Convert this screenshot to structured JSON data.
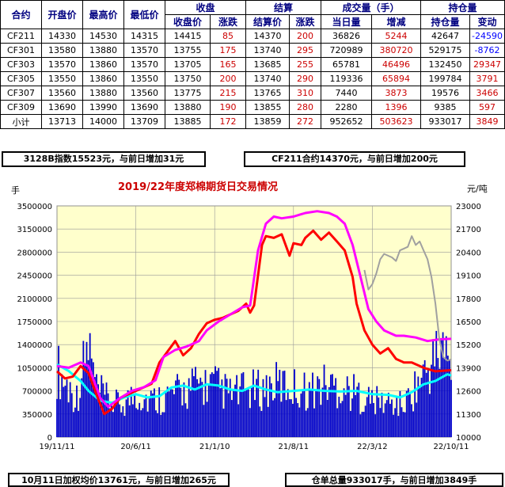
{
  "table": {
    "header_top": [
      "合约",
      "开盘价",
      "最高价",
      "最低价",
      "收盘",
      "结算",
      "成交量（手）",
      "持仓量"
    ],
    "header_sub": [
      "收盘价",
      "涨跌",
      "结算价",
      "涨跌",
      "当日量",
      "增减",
      "持仓量",
      "变动"
    ],
    "rows": [
      [
        "CF211",
        "14330",
        "14530",
        "14315",
        "14415",
        "85",
        "14370",
        "200",
        "36826",
        "5244",
        "42647",
        "-24590"
      ],
      [
        "CF301",
        "13580",
        "13880",
        "13570",
        "13755",
        "175",
        "13740",
        "295",
        "720989",
        "380720",
        "529175",
        "-8762"
      ],
      [
        "CF303",
        "13570",
        "13860",
        "13570",
        "13705",
        "165",
        "13685",
        "255",
        "65781",
        "46496",
        "132450",
        "29347"
      ],
      [
        "CF305",
        "13550",
        "13860",
        "13550",
        "13750",
        "200",
        "13740",
        "290",
        "119336",
        "65894",
        "199784",
        "3791"
      ],
      [
        "CF307",
        "13560",
        "13880",
        "13560",
        "13775",
        "215",
        "13765",
        "310",
        "7440",
        "3873",
        "19576",
        "3466"
      ],
      [
        "CF309",
        "13690",
        "13990",
        "13690",
        "13880",
        "190",
        "13855",
        "280",
        "2280",
        "1396",
        "9385",
        "597"
      ],
      [
        "小计",
        "13713",
        "14000",
        "13709",
        "13885",
        "172",
        "13859",
        "272",
        "952652",
        "503623",
        "933017",
        "3849"
      ]
    ]
  },
  "info_boxes": {
    "index_note": "3128B指数15523元，与前日增加31元",
    "contract_note": "CF211合约14370元，与前日增加200元",
    "weighted_note": "10月11日加权均价13761元，与前日增加265元",
    "warehouse_note": "仓单总量933017手，与前日增加3849手"
  },
  "colors": {
    "header_text": "#000080",
    "positive": "#cc0000",
    "negative": "#0000ff",
    "plot_bg": "#ffffcc",
    "volume": "#0000cc",
    "open_interest": "#00ffff",
    "weighted_price": "#ff0000",
    "index_price": "#ff00ff",
    "contract_price": "#a0a0a0",
    "title": "#cc0000"
  },
  "chart_data": {
    "type": "line",
    "title": "2019/22年度郑棉期货日交易情况",
    "ylabel_left": "手",
    "ylabel_right": "元/吨",
    "x_tick_labels": [
      "19/11/11",
      "20/6/11",
      "21/1/10",
      "21/8/11",
      "22/3/12",
      "22/10/11"
    ],
    "y_left_ticks": [
      0,
      350000,
      700000,
      1050000,
      1400000,
      1750000,
      2100000,
      2450000,
      2800000,
      3150000,
      3500000
    ],
    "y_right_ticks": [
      10000,
      11300,
      12600,
      13900,
      15200,
      16500,
      17800,
      19100,
      20400,
      21700,
      23000
    ],
    "ylim_left": [
      0,
      3500000
    ],
    "ylim_right": [
      10000,
      23000
    ],
    "grid": true,
    "series": [
      {
        "kind": "volume-bars",
        "axis": "left",
        "points": [
          [
            0.0,
            1050000
          ],
          [
            0.02,
            820000
          ],
          [
            0.05,
            600000
          ],
          [
            0.08,
            1400000
          ],
          [
            0.1,
            720000
          ],
          [
            0.13,
            550000
          ],
          [
            0.16,
            480000
          ],
          [
            0.2,
            650000
          ],
          [
            0.24,
            560000
          ],
          [
            0.28,
            620000
          ],
          [
            0.32,
            700000
          ],
          [
            0.36,
            800000
          ],
          [
            0.4,
            780000
          ],
          [
            0.44,
            650000
          ],
          [
            0.48,
            700000
          ],
          [
            0.52,
            720000
          ],
          [
            0.56,
            800000
          ],
          [
            0.6,
            750000
          ],
          [
            0.64,
            700000
          ],
          [
            0.68,
            800000
          ],
          [
            0.72,
            760000
          ],
          [
            0.76,
            650000
          ],
          [
            0.8,
            550000
          ],
          [
            0.84,
            520000
          ],
          [
            0.88,
            480000
          ],
          [
            0.92,
            850000
          ],
          [
            0.95,
            1100000
          ],
          [
            0.98,
            1400000
          ],
          [
            1.0,
            952652
          ]
        ]
      },
      {
        "kind": "line",
        "axis": "left",
        "color_key": "open_interest",
        "points": [
          [
            0.0,
            1100000
          ],
          [
            0.03,
            1000000
          ],
          [
            0.06,
            850000
          ],
          [
            0.08,
            700000
          ],
          [
            0.11,
            550000
          ],
          [
            0.14,
            520000
          ],
          [
            0.17,
            600000
          ],
          [
            0.2,
            650000
          ],
          [
            0.23,
            600000
          ],
          [
            0.26,
            620000
          ],
          [
            0.29,
            750000
          ],
          [
            0.32,
            780000
          ],
          [
            0.35,
            720000
          ],
          [
            0.38,
            800000
          ],
          [
            0.41,
            780000
          ],
          [
            0.44,
            720000
          ],
          [
            0.47,
            700000
          ],
          [
            0.5,
            780000
          ],
          [
            0.53,
            720000
          ],
          [
            0.56,
            680000
          ],
          [
            0.6,
            700000
          ],
          [
            0.64,
            720000
          ],
          [
            0.68,
            700000
          ],
          [
            0.72,
            690000
          ],
          [
            0.76,
            700000
          ],
          [
            0.8,
            650000
          ],
          [
            0.84,
            640000
          ],
          [
            0.87,
            600000
          ],
          [
            0.9,
            680000
          ],
          [
            0.93,
            800000
          ],
          [
            0.96,
            850000
          ],
          [
            0.99,
            950000
          ],
          [
            1.0,
            933017
          ]
        ]
      },
      {
        "kind": "line",
        "axis": "right",
        "color_key": "weighted_price",
        "points": [
          [
            0.0,
            13700
          ],
          [
            0.02,
            13300
          ],
          [
            0.04,
            13400
          ],
          [
            0.06,
            14000
          ],
          [
            0.08,
            13600
          ],
          [
            0.1,
            12400
          ],
          [
            0.12,
            11300
          ],
          [
            0.14,
            11600
          ],
          [
            0.16,
            12200
          ],
          [
            0.18,
            12400
          ],
          [
            0.2,
            12600
          ],
          [
            0.22,
            12800
          ],
          [
            0.24,
            13000
          ],
          [
            0.26,
            14200
          ],
          [
            0.28,
            14800
          ],
          [
            0.3,
            15400
          ],
          [
            0.32,
            14600
          ],
          [
            0.34,
            15000
          ],
          [
            0.36,
            15800
          ],
          [
            0.38,
            16400
          ],
          [
            0.4,
            16600
          ],
          [
            0.42,
            16700
          ],
          [
            0.44,
            16900
          ],
          [
            0.46,
            17100
          ],
          [
            0.48,
            17500
          ],
          [
            0.49,
            17000
          ],
          [
            0.5,
            17400
          ],
          [
            0.52,
            20800
          ],
          [
            0.53,
            21300
          ],
          [
            0.55,
            21200
          ],
          [
            0.57,
            21400
          ],
          [
            0.59,
            20200
          ],
          [
            0.6,
            20900
          ],
          [
            0.62,
            20800
          ],
          [
            0.63,
            21200
          ],
          [
            0.65,
            21600
          ],
          [
            0.67,
            21100
          ],
          [
            0.69,
            21500
          ],
          [
            0.71,
            21000
          ],
          [
            0.73,
            20500
          ],
          [
            0.75,
            19000
          ],
          [
            0.76,
            17500
          ],
          [
            0.78,
            16000
          ],
          [
            0.8,
            15200
          ],
          [
            0.82,
            14700
          ],
          [
            0.84,
            15000
          ],
          [
            0.86,
            14400
          ],
          [
            0.88,
            14200
          ],
          [
            0.9,
            14200
          ],
          [
            0.93,
            13900
          ],
          [
            0.96,
            13700
          ],
          [
            1.0,
            13761
          ]
        ]
      },
      {
        "kind": "line",
        "axis": "right",
        "color_key": "index_price",
        "points": [
          [
            0.0,
            14000
          ],
          [
            0.03,
            13900
          ],
          [
            0.06,
            14200
          ],
          [
            0.08,
            14000
          ],
          [
            0.11,
            12200
          ],
          [
            0.13,
            11700
          ],
          [
            0.16,
            12200
          ],
          [
            0.19,
            12600
          ],
          [
            0.22,
            12800
          ],
          [
            0.25,
            13200
          ],
          [
            0.27,
            14500
          ],
          [
            0.3,
            14900
          ],
          [
            0.33,
            15100
          ],
          [
            0.36,
            15400
          ],
          [
            0.38,
            16000
          ],
          [
            0.41,
            16500
          ],
          [
            0.44,
            16900
          ],
          [
            0.47,
            17300
          ],
          [
            0.49,
            17400
          ],
          [
            0.51,
            20500
          ],
          [
            0.53,
            22000
          ],
          [
            0.55,
            22400
          ],
          [
            0.57,
            22300
          ],
          [
            0.6,
            22400
          ],
          [
            0.63,
            22600
          ],
          [
            0.66,
            22700
          ],
          [
            0.69,
            22600
          ],
          [
            0.71,
            22400
          ],
          [
            0.73,
            22000
          ],
          [
            0.75,
            20800
          ],
          [
            0.77,
            19000
          ],
          [
            0.79,
            17200
          ],
          [
            0.81,
            16500
          ],
          [
            0.83,
            16000
          ],
          [
            0.86,
            15700
          ],
          [
            0.88,
            15700
          ],
          [
            0.91,
            15600
          ],
          [
            0.94,
            15400
          ],
          [
            0.97,
            15500
          ],
          [
            1.0,
            15523
          ]
        ]
      },
      {
        "kind": "line",
        "axis": "right",
        "color_key": "contract_price",
        "points": [
          [
            0.78,
            19400
          ],
          [
            0.79,
            18300
          ],
          [
            0.8,
            18600
          ],
          [
            0.81,
            19200
          ],
          [
            0.82,
            20000
          ],
          [
            0.83,
            20300
          ],
          [
            0.85,
            20100
          ],
          [
            0.86,
            19900
          ],
          [
            0.87,
            20500
          ],
          [
            0.89,
            20700
          ],
          [
            0.9,
            21300
          ],
          [
            0.91,
            20800
          ],
          [
            0.92,
            21000
          ],
          [
            0.93,
            20500
          ],
          [
            0.94,
            20000
          ],
          [
            0.95,
            19000
          ],
          [
            0.96,
            17500
          ],
          [
            0.97,
            15500
          ],
          [
            0.98,
            14500
          ],
          [
            0.99,
            14300
          ],
          [
            1.0,
            14370
          ]
        ]
      }
    ]
  }
}
